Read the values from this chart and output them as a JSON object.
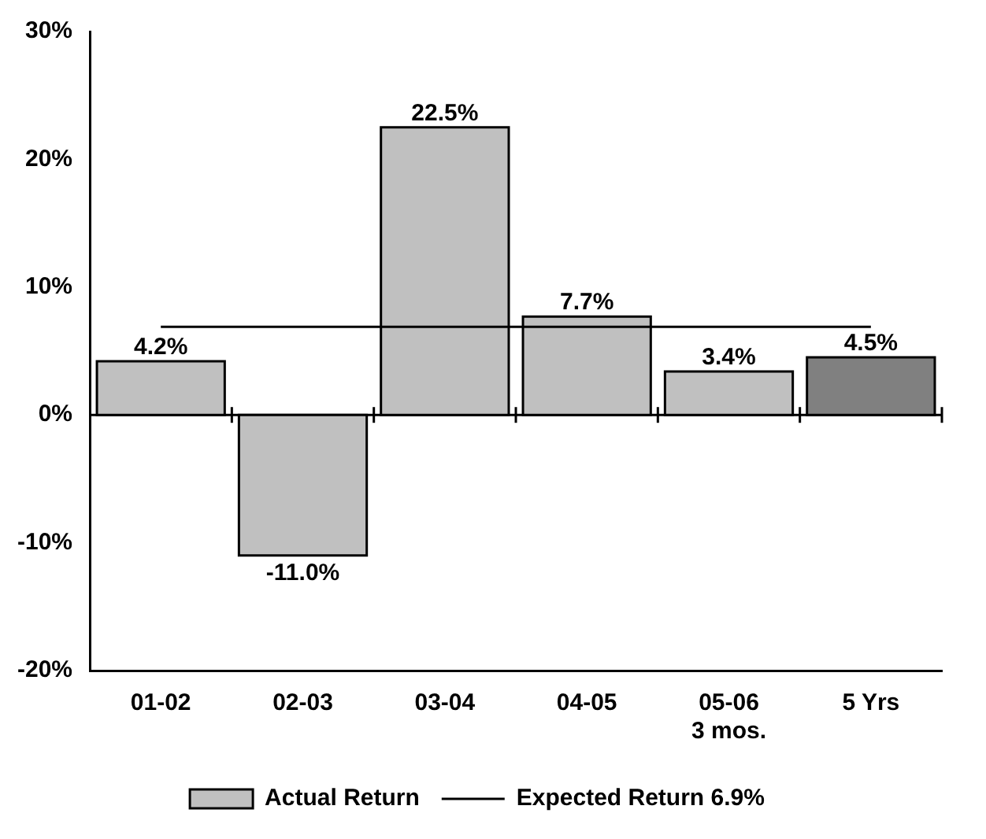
{
  "chart_data": {
    "type": "bar",
    "categories": [
      "01-02",
      "02-03",
      "03-04",
      "04-05",
      "05-06\n3 mos.",
      "5 Yrs"
    ],
    "series": [
      {
        "name": "Actual Return",
        "colors": [
          "#c0c0c0",
          "#c0c0c0",
          "#c0c0c0",
          "#c0c0c0",
          "#c0c0c0",
          "#808080"
        ],
        "values": [
          4.2,
          -11.0,
          22.5,
          7.7,
          3.4,
          4.5
        ],
        "value_labels": [
          "4.2%",
          "-11.0%",
          "22.5%",
          "7.7%",
          "3.4%",
          "4.5%"
        ]
      }
    ],
    "ref_lines": [
      {
        "axis": "y",
        "value": 0,
        "color": "#000000"
      },
      {
        "axis": "y",
        "value": 6.9,
        "label": "Expected Return 6.9%",
        "color": "#000000"
      }
    ],
    "ylim": [
      -20,
      30
    ],
    "yticks": [
      {
        "value": -20,
        "label": "-20%"
      },
      {
        "value": -10,
        "label": "-10%"
      },
      {
        "value": 0,
        "label": "0%"
      },
      {
        "value": 10,
        "label": "10%"
      },
      {
        "value": 20,
        "label": "20%"
      },
      {
        "value": 30,
        "label": "30%"
      }
    ],
    "grid": false,
    "legend": "bottom"
  }
}
